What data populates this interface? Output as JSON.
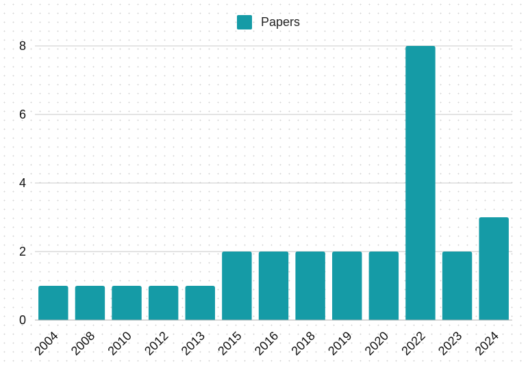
{
  "chart_data": {
    "type": "bar",
    "categories": [
      "2004",
      "2008",
      "2010",
      "2012",
      "2013",
      "2015",
      "2016",
      "2018",
      "2019",
      "2020",
      "2022",
      "2023",
      "2024"
    ],
    "series": [
      {
        "name": "Papers",
        "values": [
          1,
          1,
          1,
          1,
          1,
          2,
          2,
          2,
          2,
          2,
          8,
          2,
          3
        ]
      }
    ],
    "ylim": [
      0,
      8
    ],
    "yticks": [
      0,
      2,
      4,
      6,
      8
    ],
    "grid": true,
    "legend_position": "top-center",
    "colors": {
      "bar": "#159ba6",
      "grid": "#c8c8c8",
      "axis": "#b0b0b0"
    }
  }
}
